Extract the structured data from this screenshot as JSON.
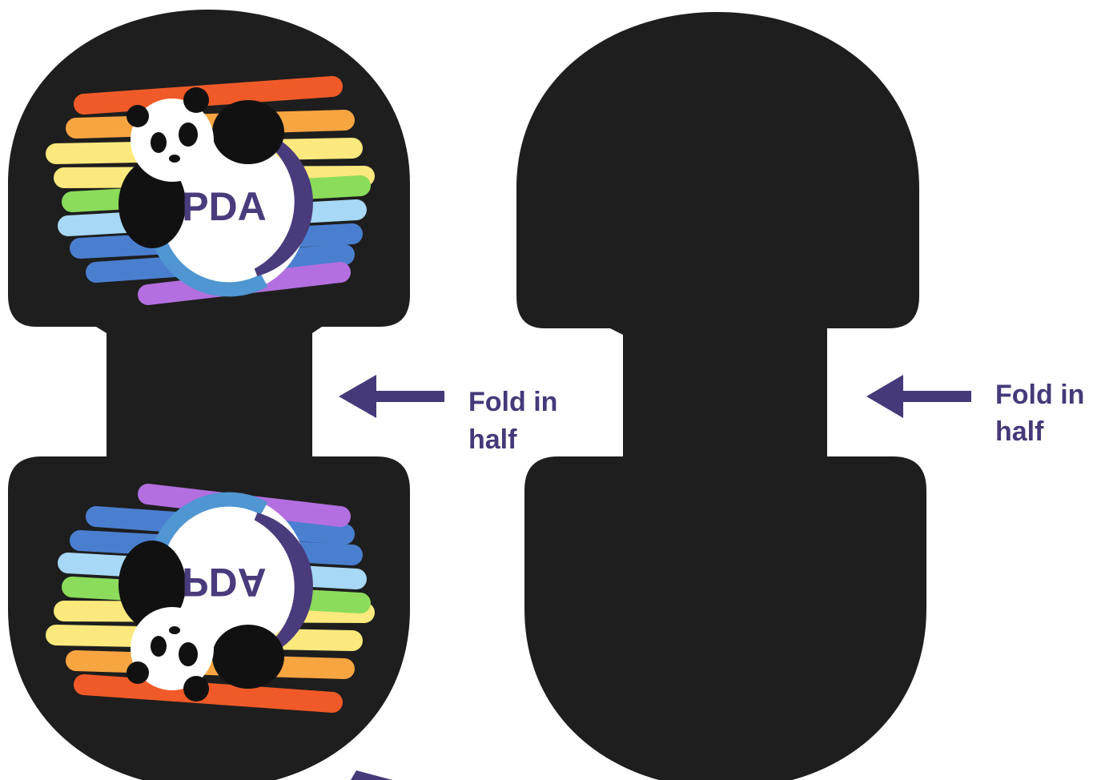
{
  "left_panel": {
    "logo_top": "PDA",
    "logo_bottom": "PDA",
    "fold_label": {
      "line1": "Fold in",
      "line2": "half"
    }
  },
  "right_panel": {
    "fold_label": {
      "line1": "Fold in",
      "line2": "half"
    }
  }
}
